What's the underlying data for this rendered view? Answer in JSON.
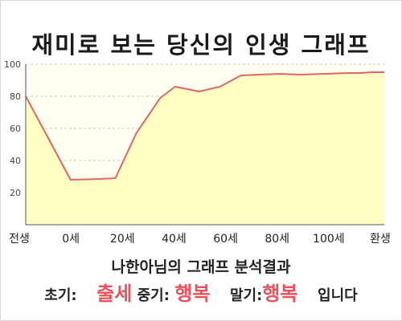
{
  "title": "재미로 보는 당신의 인생 그래프",
  "chart_data": {
    "type": "area",
    "x_labels": [
      "전생",
      "0세",
      "20세",
      "40세",
      "60세",
      "80세",
      "100세",
      "환생"
    ],
    "x": [
      -20,
      -5,
      5,
      10,
      17,
      25,
      30,
      38,
      45,
      52,
      58,
      65,
      72,
      80,
      88,
      92,
      96,
      100
    ],
    "y": [
      80,
      28,
      28.5,
      29,
      57,
      79,
      86,
      83,
      86,
      93,
      93.5,
      94,
      93.5,
      94,
      94.5,
      94.5,
      95,
      95
    ],
    "ylim": [
      0,
      100
    ],
    "y_ticks": [
      20,
      40,
      60,
      80,
      100
    ],
    "grid": true,
    "line_color": "#e06666",
    "fill_color": "#ffffc4",
    "background_color": "#fffff2"
  },
  "summary": "나한아님의 그래프 분석결과",
  "verdict": {
    "early_label": "초기:",
    "early_value": "출세",
    "mid_label": "중기:",
    "mid_value": "행복",
    "late_label": "말기:",
    "late_value": "행복",
    "suffix": "입니다"
  }
}
